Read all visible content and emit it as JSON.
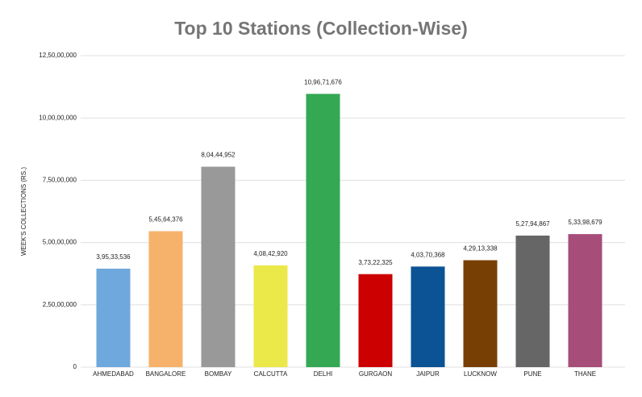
{
  "chart_data": {
    "type": "bar",
    "title": "Top 10 Stations (Collection-Wise)",
    "y_label": "WEEK'S COLLECTIONS (RS.)",
    "categories": [
      "AHMEDABAD",
      "BANGALORE",
      "BOMBAY",
      "CALCUTTA",
      "DELHI",
      "GURGAON",
      "JAIPUR",
      "LUCKNOW",
      "PUNE",
      "THANE"
    ],
    "values": [
      39533536,
      54564376,
      80444952,
      40842920,
      109671676,
      37322325,
      40370368,
      42913338,
      52794867,
      53398679
    ],
    "value_labels": [
      "3,95,33,536",
      "5,45,64,376",
      "8,04,44,952",
      "4,08,42,920",
      "10,96,71,676",
      "3,73,22,325",
      "4,03,70,368",
      "4,29,13,338",
      "5,27,94,867",
      "5,33,98,679"
    ],
    "colors": [
      "#6fa8dc",
      "#f6b26b",
      "#999999",
      "#ebe84a",
      "#34a853",
      "#cc0000",
      "#0b5394",
      "#783f04",
      "#666666",
      "#a64d79"
    ],
    "ylim": [
      0,
      125000000
    ],
    "yticks": [
      0,
      {
        "value": 25000000,
        "label": "2,50,00,000"
      },
      {
        "value": 50000000,
        "label": "5,00,00,000"
      },
      {
        "value": 75000000,
        "label": "7,50,00,000"
      },
      {
        "value": 100000000,
        "label": "10,00,00,000"
      },
      {
        "value": 125000000,
        "label": "12,50,00,000"
      }
    ],
    "grid": true
  }
}
